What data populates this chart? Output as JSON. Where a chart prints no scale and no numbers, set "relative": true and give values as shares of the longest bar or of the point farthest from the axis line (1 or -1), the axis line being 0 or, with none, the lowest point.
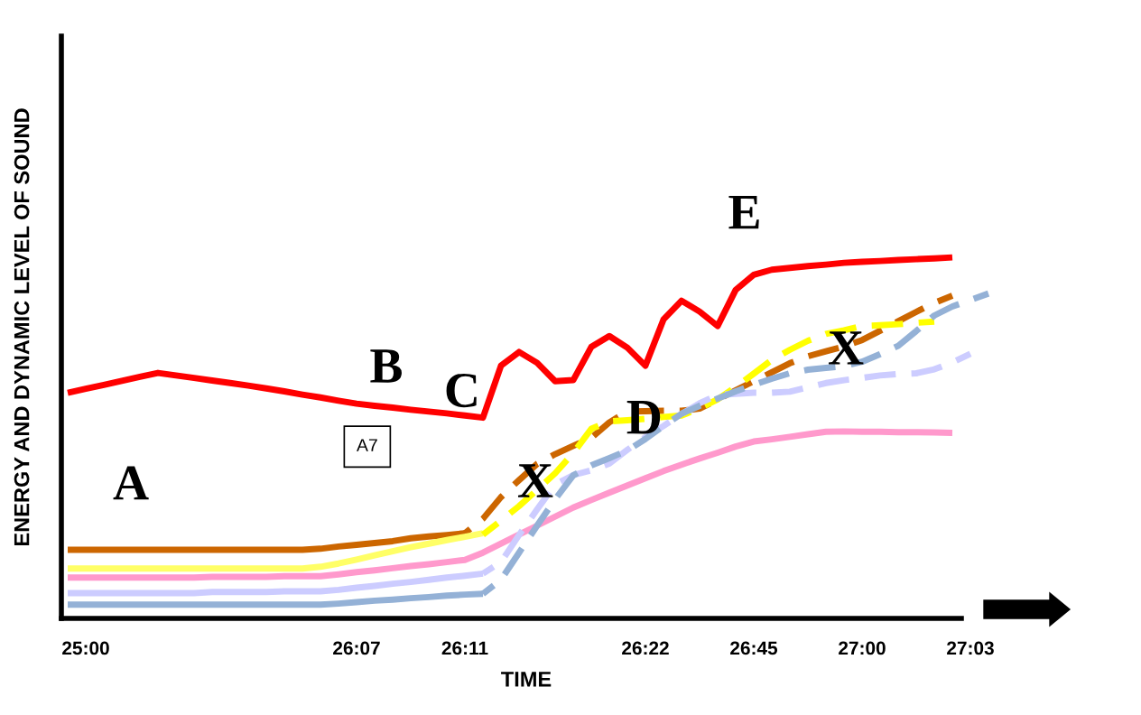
{
  "chart_data": {
    "type": "line",
    "relative": true,
    "xlabel": "TIME",
    "ylabel": "ENERGY AND DYNAMIC LEVEL OF SOUND",
    "categories": [
      null,
      "25:00",
      null,
      null,
      null,
      null,
      null,
      null,
      null,
      null,
      null,
      null,
      null,
      null,
      null,
      null,
      "26:07",
      null,
      null,
      null,
      null,
      null,
      "26:11",
      null,
      null,
      null,
      null,
      null,
      null,
      null,
      null,
      null,
      "26:22",
      null,
      null,
      null,
      null,
      null,
      "26:45",
      null,
      null,
      null,
      null,
      null,
      "27:00",
      null,
      null,
      null,
      null,
      null,
      "27:03",
      null
    ],
    "tick_labels": "x",
    "grid": false,
    "legend": false,
    "marker": "none",
    "series": [
      {
        "color": "#ff0000",
        "line_style": "solid",
        "values": [
          0.625,
          0.636,
          0.647,
          0.658,
          0.669,
          0.68,
          0.673,
          0.666,
          0.659,
          0.652,
          0.645,
          0.637,
          0.629,
          0.62,
          0.612,
          0.603,
          0.595,
          0.589,
          0.584,
          0.578,
          0.573,
          0.568,
          0.562,
          0.556,
          0.7,
          0.738,
          0.708,
          0.657,
          0.66,
          0.752,
          0.782,
          0.75,
          0.7,
          0.828,
          0.88,
          0.85,
          0.81,
          0.91,
          0.952,
          0.966,
          0.971,
          0.976,
          0.98,
          0.985,
          0.988,
          0.99,
          0.993,
          0.995,
          0.997,
          1.0,
          null,
          null
        ]
      },
      {
        "color": "#cc6600",
        "line_style": "solid",
        "values": [
          0.19,
          0.19,
          0.19,
          0.19,
          0.19,
          0.19,
          0.19,
          0.19,
          0.19,
          0.19,
          0.19,
          0.19,
          0.19,
          0.19,
          0.193,
          0.199,
          0.204,
          0.209,
          0.214,
          0.222,
          0.227,
          0.231,
          0.236,
          null,
          null,
          null,
          null,
          null,
          null,
          null,
          null,
          null,
          null,
          null,
          null,
          null,
          null,
          null,
          null,
          null,
          null,
          null,
          null,
          null,
          null,
          null,
          null,
          null,
          null,
          null,
          null,
          null
        ]
      },
      {
        "color": "#cc6600",
        "line_style": "dashed",
        "values": [
          null,
          null,
          null,
          null,
          null,
          null,
          null,
          null,
          null,
          null,
          null,
          null,
          null,
          null,
          null,
          null,
          null,
          null,
          null,
          null,
          null,
          null,
          0.236,
          0.276,
          0.336,
          0.383,
          0.428,
          0.455,
          0.478,
          0.5,
          0.543,
          0.573,
          0.574,
          0.575,
          0.575,
          0.581,
          0.606,
          0.632,
          0.657,
          0.682,
          0.707,
          0.726,
          0.74,
          0.753,
          0.771,
          0.797,
          0.823,
          0.849,
          0.874,
          0.894,
          null,
          null
        ]
      },
      {
        "color": "#ffff66",
        "line_style": "solid",
        "values": [
          0.138,
          0.138,
          0.138,
          0.138,
          0.138,
          0.138,
          0.138,
          0.138,
          0.138,
          0.138,
          0.138,
          0.138,
          0.138,
          0.138,
          0.143,
          0.152,
          0.163,
          0.175,
          0.186,
          0.197,
          0.207,
          0.217,
          0.226,
          0.236,
          null,
          null,
          null,
          null,
          null,
          null,
          null,
          null,
          null,
          null,
          null,
          null,
          null,
          null,
          null,
          null,
          null,
          null,
          null,
          null,
          null,
          null,
          null,
          null,
          null,
          null,
          null,
          null
        ]
      },
      {
        "color": "#ffff00",
        "line_style": "dashed",
        "values": [
          null,
          null,
          null,
          null,
          null,
          null,
          null,
          null,
          null,
          null,
          null,
          null,
          null,
          null,
          null,
          null,
          null,
          null,
          null,
          null,
          null,
          null,
          null,
          0.232,
          0.271,
          0.311,
          0.356,
          0.402,
          0.458,
          0.525,
          0.546,
          0.549,
          0.553,
          0.558,
          0.562,
          0.582,
          0.607,
          0.641,
          0.678,
          0.716,
          0.744,
          0.769,
          0.788,
          0.798,
          0.81,
          0.812,
          0.815,
          0.819,
          0.822,
          null,
          null,
          null
        ]
      },
      {
        "color": "#ff99cc",
        "line_style": "solid",
        "values": [
          0.113,
          0.113,
          0.113,
          0.113,
          0.113,
          0.113,
          0.113,
          0.113,
          0.115,
          0.115,
          0.115,
          0.115,
          0.117,
          0.117,
          0.117,
          0.122,
          0.128,
          0.133,
          0.139,
          0.145,
          0.15,
          0.156,
          0.162,
          0.182,
          0.207,
          0.232,
          0.257,
          0.282,
          0.307,
          0.328,
          0.348,
          0.368,
          0.388,
          0.408,
          0.426,
          0.443,
          0.459,
          0.476,
          0.49,
          0.496,
          0.503,
          0.51,
          0.517,
          0.518,
          0.517,
          0.517,
          0.516,
          0.516,
          0.515,
          0.514,
          null,
          null
        ]
      },
      {
        "color": "#ccccff",
        "line_style": "solid",
        "values": [
          0.07,
          0.07,
          0.07,
          0.07,
          0.07,
          0.07,
          0.07,
          0.07,
          0.073,
          0.073,
          0.073,
          0.073,
          0.075,
          0.075,
          0.075,
          0.079,
          0.085,
          0.09,
          0.096,
          0.101,
          0.107,
          0.113,
          0.118,
          0.124,
          null,
          null,
          null,
          null,
          null,
          null,
          null,
          null,
          null,
          null,
          null,
          null,
          null,
          null,
          null,
          null,
          null,
          null,
          null,
          null,
          null,
          null,
          null,
          null,
          null,
          null,
          null,
          null
        ]
      },
      {
        "color": "#ccccff",
        "line_style": "dashed",
        "values": [
          null,
          null,
          null,
          null,
          null,
          null,
          null,
          null,
          null,
          null,
          null,
          null,
          null,
          null,
          null,
          null,
          null,
          null,
          null,
          null,
          null,
          null,
          null,
          0.124,
          0.156,
          0.231,
          0.302,
          0.371,
          0.397,
          0.41,
          0.429,
          0.467,
          0.502,
          0.533,
          0.566,
          0.596,
          0.619,
          0.622,
          0.625,
          0.625,
          0.628,
          0.64,
          0.652,
          0.66,
          0.666,
          0.673,
          0.677,
          0.679,
          0.69,
          0.709,
          0.733,
          null
        ]
      },
      {
        "color": "#94b1d6",
        "line_style": "solid",
        "values": [
          0.038,
          0.038,
          0.038,
          0.038,
          0.038,
          0.038,
          0.038,
          0.038,
          0.038,
          0.038,
          0.038,
          0.038,
          0.038,
          0.038,
          0.038,
          0.041,
          0.045,
          0.049,
          0.052,
          0.056,
          0.059,
          0.063,
          0.066,
          0.068,
          null,
          null,
          null,
          null,
          null,
          null,
          null,
          null,
          null,
          null,
          null,
          null,
          null,
          null,
          null,
          null,
          null,
          null,
          null,
          null,
          null,
          null,
          null,
          null,
          null,
          null,
          null,
          null
        ]
      },
      {
        "color": "#94b1d6",
        "line_style": "dashed",
        "values": [
          null,
          null,
          null,
          null,
          null,
          null,
          null,
          null,
          null,
          null,
          null,
          null,
          null,
          null,
          null,
          null,
          null,
          null,
          null,
          null,
          null,
          null,
          null,
          0.068,
          0.107,
          0.182,
          0.257,
          0.33,
          0.396,
          0.424,
          0.444,
          0.465,
          0.497,
          0.533,
          0.567,
          0.589,
          0.609,
          0.629,
          0.647,
          0.664,
          0.679,
          0.689,
          0.694,
          0.699,
          0.711,
          0.732,
          0.755,
          0.796,
          0.839,
          0.864,
          0.882,
          0.9
        ]
      }
    ],
    "annotations": [
      "A",
      "B",
      "C",
      "D",
      "E",
      "X",
      "X",
      "A7"
    ]
  }
}
